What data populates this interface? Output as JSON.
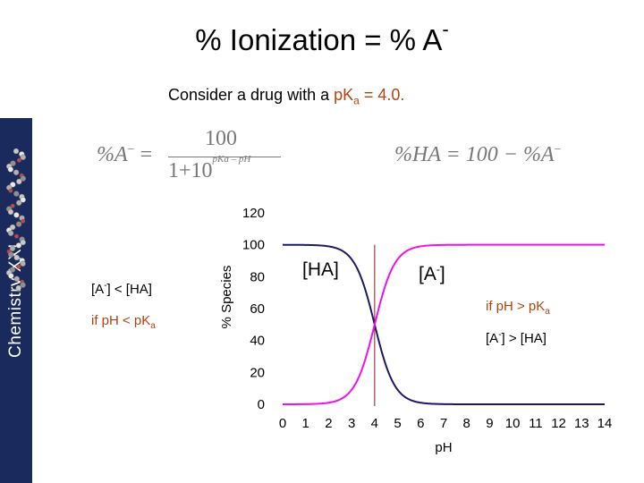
{
  "slide": {
    "title_text": "% Ionization = % A",
    "title_sup": "-",
    "subtitle_pre": "Consider a drug with a ",
    "subtitle_pk": "pK",
    "subtitle_pk_sub": "a",
    "subtitle_eq": " = 4.0.",
    "side_label": "Chemistry XXI"
  },
  "equations": {
    "lhs": "%A",
    "lhs_sup": "−",
    "lhs_eq": " =",
    "numerator": "100",
    "denominator": "1+10",
    "exponent": "pKa – pH",
    "rhs": "%HA = 100 − %A",
    "rhs_sup": "−"
  },
  "notes": {
    "left_1a": "[A",
    "left_1sup": "-",
    "left_1b": "] < [HA]",
    "left_2a": "if pH < pK",
    "left_2sub": "a",
    "right_1a": "if pH > pK",
    "right_1sub": "a",
    "right_2a": "[A",
    "right_2sup": "-",
    "right_2b": "] > [HA]"
  },
  "colors": {
    "accent_text": "#b04410",
    "HA_curve": "#1a1a66",
    "A_curve": "#ee11ee",
    "pKa_line": "#8b1a1a",
    "side_band": "#1b2a5c"
  },
  "chart_data": {
    "type": "line",
    "title": "",
    "xlabel": "pH",
    "ylabel": "% Species",
    "xlim": [
      0,
      14
    ],
    "ylim": [
      0,
      120
    ],
    "x_ticks": [
      0,
      1,
      2,
      3,
      4,
      5,
      6,
      7,
      8,
      9,
      10,
      11,
      12,
      13,
      14
    ],
    "y_ticks": [
      0,
      20,
      40,
      60,
      80,
      100,
      120
    ],
    "pKa": 4.0,
    "vertical_line_x": 4.0,
    "grid": false,
    "series": [
      {
        "name": "[HA]",
        "x": [
          0,
          1,
          2,
          2.5,
          3,
          3.5,
          4,
          4.5,
          5,
          5.5,
          6,
          7,
          8,
          9,
          10,
          11,
          12,
          13,
          14
        ],
        "values": [
          99.99,
          99.9,
          99.0,
          96.9,
          90.9,
          76.0,
          50.0,
          24.0,
          9.1,
          3.1,
          1.0,
          0.1,
          0.01,
          0,
          0,
          0,
          0,
          0,
          0
        ]
      },
      {
        "name": "[A-]",
        "x": [
          0,
          1,
          2,
          2.5,
          3,
          3.5,
          4,
          4.5,
          5,
          5.5,
          6,
          7,
          8,
          9,
          10,
          11,
          12,
          13,
          14
        ],
        "values": [
          0.01,
          0.1,
          1.0,
          3.1,
          9.1,
          24.0,
          50.0,
          76.0,
          90.9,
          96.9,
          99.0,
          99.9,
          99.99,
          100,
          100,
          100,
          100,
          100,
          100
        ]
      }
    ],
    "series_labels": {
      "HA": "[HA]",
      "A_base": "[A",
      "A_sup": "-",
      "A_close": "]"
    }
  }
}
